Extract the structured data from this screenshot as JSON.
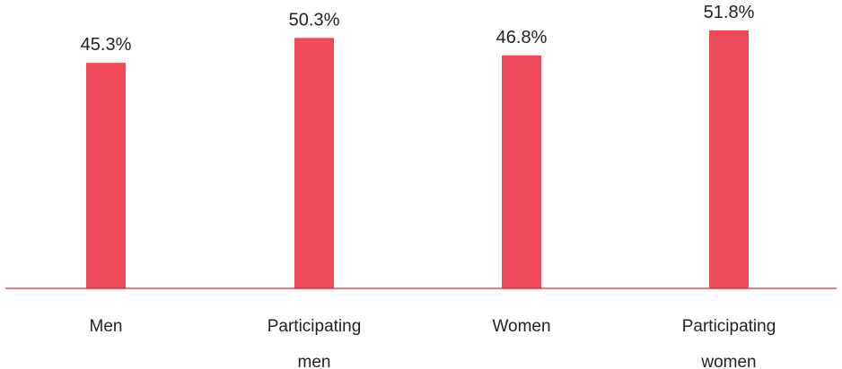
{
  "chart_data": {
    "type": "bar",
    "categories": [
      [
        "Men"
      ],
      [
        "Participating",
        "men"
      ],
      [
        "Women"
      ],
      [
        "Participating",
        "women"
      ]
    ],
    "values": [
      45.3,
      50.3,
      46.8,
      51.8
    ],
    "value_labels": [
      "45.3%",
      "50.3%",
      "46.8%",
      "51.8%"
    ],
    "title": "",
    "xlabel": "",
    "ylabel": "",
    "ylim": [
      0,
      55
    ],
    "grid": false,
    "legend": "none",
    "bar_color": "#ef4a57",
    "axis_color": "#d9243a"
  }
}
